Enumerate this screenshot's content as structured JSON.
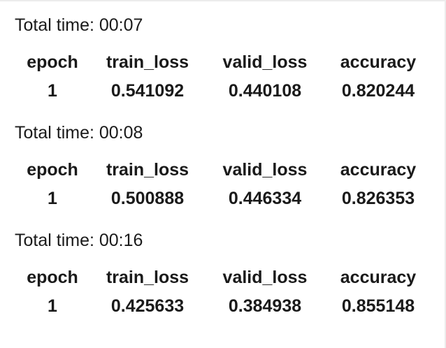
{
  "runs": [
    {
      "total_time": "Total time: 00:07",
      "columns": [
        "epoch",
        "train_loss",
        "valid_loss",
        "accuracy"
      ],
      "row": [
        "1",
        "0.541092",
        "0.440108",
        "0.820244"
      ]
    },
    {
      "total_time": "Total time: 00:08",
      "columns": [
        "epoch",
        "train_loss",
        "valid_loss",
        "accuracy"
      ],
      "row": [
        "1",
        "0.500888",
        "0.446334",
        "0.826353"
      ]
    },
    {
      "total_time": "Total time: 00:16",
      "columns": [
        "epoch",
        "train_loss",
        "valid_loss",
        "accuracy"
      ],
      "row": [
        "1",
        "0.425633",
        "0.384938",
        "0.855148"
      ]
    }
  ]
}
